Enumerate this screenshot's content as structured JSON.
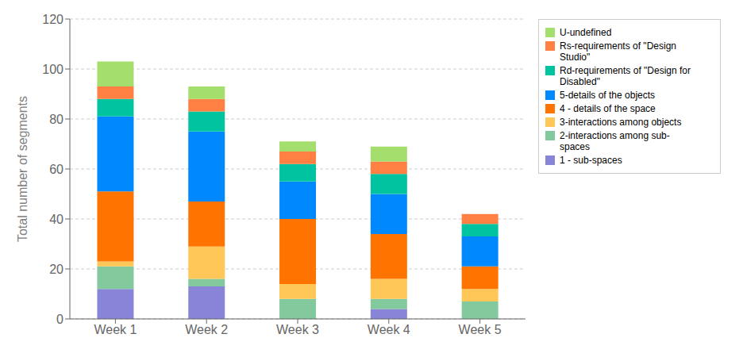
{
  "chart_data": {
    "type": "bar",
    "stacked": true,
    "grid": true,
    "legend": "right",
    "categories": [
      "Week 1",
      "Week 2",
      "Week 3",
      "Week 4",
      "Week 5"
    ],
    "ylabel": "Total number of segments",
    "ylim": [
      0,
      120
    ],
    "yticks": [
      0,
      20,
      40,
      60,
      80,
      100,
      120
    ],
    "series": [
      {
        "name": "1 - sub-spaces",
        "color": "#8884d8",
        "values": [
          12,
          13,
          0,
          4,
          0
        ]
      },
      {
        "name": "2-interactions among sub-\nspaces",
        "color": "#82ca9d",
        "values": [
          9,
          3,
          8,
          4,
          7
        ]
      },
      {
        "name": "3-interactions among objects",
        "color": "#ffc658",
        "values": [
          2,
          13,
          6,
          8,
          5
        ]
      },
      {
        "name": "4 - details of the space",
        "color": "#ff7300",
        "values": [
          28,
          18,
          26,
          18,
          9
        ]
      },
      {
        "name": "5-details of the objects",
        "color": "#0088fe",
        "values": [
          30,
          28,
          15,
          16,
          12
        ]
      },
      {
        "name": "Rd-requirements of \"Design for\nDisabled\"",
        "color": "#00c49f",
        "values": [
          7,
          8,
          7,
          8,
          5
        ]
      },
      {
        "name": "Rs-requirements of \"Design\nStudio\"",
        "color": "#ff8042",
        "values": [
          5,
          5,
          5,
          5,
          4
        ]
      },
      {
        "name": "U-undefined",
        "color": "#a4de6c",
        "values": [
          10,
          5,
          4,
          6,
          0
        ]
      }
    ]
  }
}
